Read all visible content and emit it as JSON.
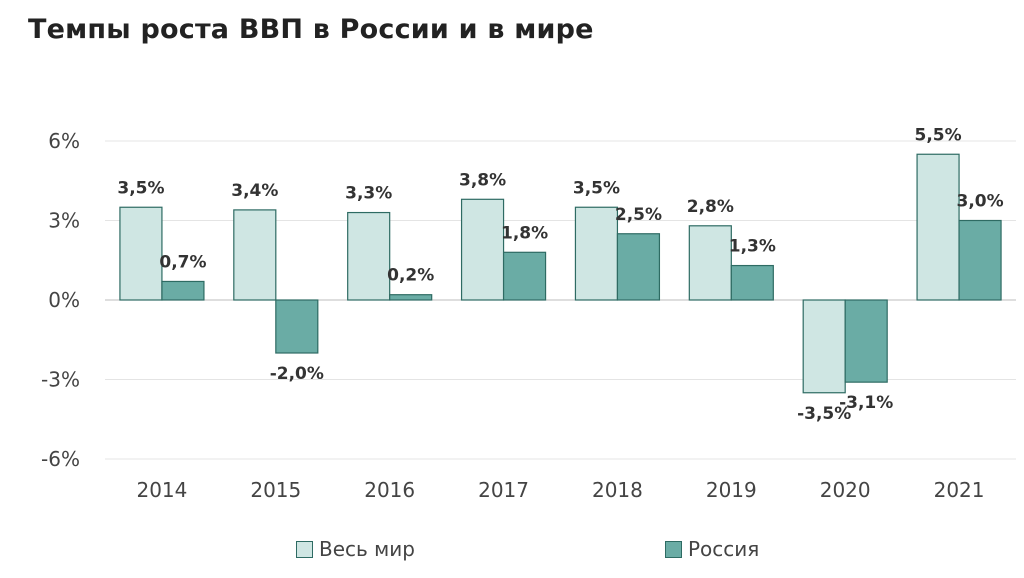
{
  "chart_data": {
    "type": "bar",
    "title": "Темпы роста ВВП в России и в мире",
    "categories": [
      "2014",
      "2015",
      "2016",
      "2017",
      "2018",
      "2019",
      "2020",
      "2021"
    ],
    "series": [
      {
        "name": "Весь мир",
        "values": [
          3.5,
          3.4,
          3.3,
          3.8,
          3.5,
          2.8,
          -3.5,
          5.5
        ],
        "labels": [
          "3,5%",
          "3,4%",
          "3,3%",
          "3,8%",
          "3,5%",
          "2,8%",
          "-3,5%",
          "5,5%"
        ],
        "color": "#cfe6e3"
      },
      {
        "name": "Россия",
        "values": [
          0.7,
          -2.0,
          0.2,
          1.8,
          2.5,
          1.3,
          -3.1,
          3.0
        ],
        "labels": [
          "0,7%",
          "-2,0%",
          "0,2%",
          "1,8%",
          "2,5%",
          "1,3%",
          "-3,1%",
          "3,0%"
        ],
        "color": "#6aaca5"
      }
    ],
    "ylim": [
      -6,
      6
    ],
    "yticks": [
      6,
      3,
      0,
      -3,
      -6
    ],
    "ytick_labels": [
      "6%",
      "3%",
      "0%",
      "-3%",
      "-6%"
    ],
    "grid": true,
    "legend_position": "bottom",
    "xlabel": "",
    "ylabel": ""
  },
  "legend": {
    "world": "Весь мир",
    "russia": "Россия"
  }
}
